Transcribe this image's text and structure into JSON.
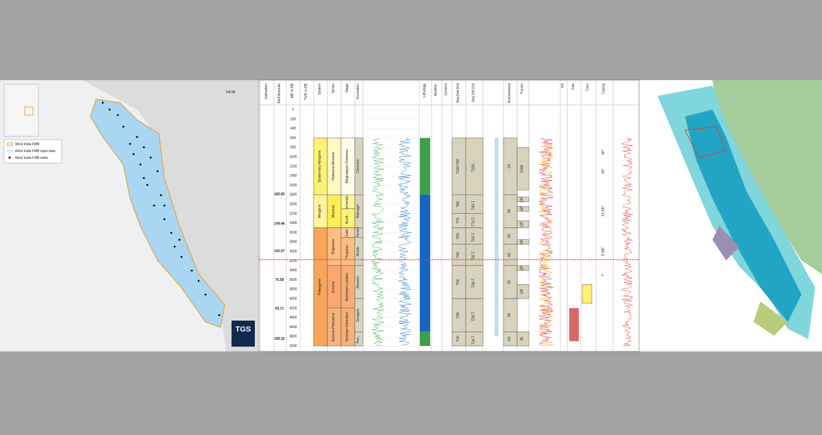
{
  "left_map": {
    "country": "INDIA",
    "legend": [
      "West India FMB",
      "West India FMB input data",
      "West India FMB wells"
    ],
    "logo": "TGS"
  },
  "log": {
    "headers": [
      "Inclination",
      "Well Azimuth",
      "MD m KB",
      "TVD m KB",
      "System",
      "Series",
      "Stage",
      "Formation",
      "Lithology",
      "Modifier",
      "Cement",
      "Seq 2nd Ord",
      "Seq 3rd Ord",
      "Environment",
      "Facies",
      "Oil",
      "Gas",
      "Core",
      "Casing"
    ],
    "depths": [
      0,
      200,
      400,
      600,
      800,
      1000,
      1200,
      1400,
      1600,
      1800,
      2000,
      2200,
      2400,
      2600,
      2800,
      3000,
      3200,
      3400,
      3600,
      3800,
      4000,
      4200,
      4400,
      4600,
      4800,
      5000
    ],
    "azimuth": [
      "182.83",
      "149.46",
      "142.97",
      "75.58",
      "50.71",
      "195.32"
    ],
    "system": [
      "Quaternary-Neogene",
      "Neogene",
      "Paleogene"
    ],
    "series": [
      "Holocene-Miocene",
      "Miocene",
      "Oligocene",
      "Eocene",
      "Eocene-Paleocene"
    ],
    "stage": [
      "Meghalayan-Tortonian",
      "Serravalli...",
      "Burdi...",
      "Chatti...",
      "Rupelian",
      "Bartonian-Lutetian",
      "Ypresian-Selandian"
    ],
    "formation": [
      "Chinchini",
      "Ratnagiri",
      "Panvel",
      "Mukta",
      "Bassein",
      "Dangarh",
      "Pan..."
    ],
    "seq2": [
      "T120-T90",
      "T80",
      "T70",
      "T60",
      "T50",
      "T30",
      "T20",
      "T10"
    ],
    "seq3": [
      "T129-...",
      "T80-T...",
      "T78-T...",
      "T64-T...",
      "T56-T...",
      "T38-T...",
      "T28-T...",
      "T16-T..."
    ],
    "environment": [
      "S4",
      "S5",
      "S5",
      "S5",
      "S5",
      "S5",
      "D3"
    ],
    "facies": [
      "OSM",
      "OP",
      "OP",
      "OP",
      "OP",
      "OP",
      "OP",
      "IB"
    ],
    "casing": [
      "30\"",
      "20\"",
      "13 3/8\"",
      "9 5/8\"",
      "7\""
    ]
  }
}
